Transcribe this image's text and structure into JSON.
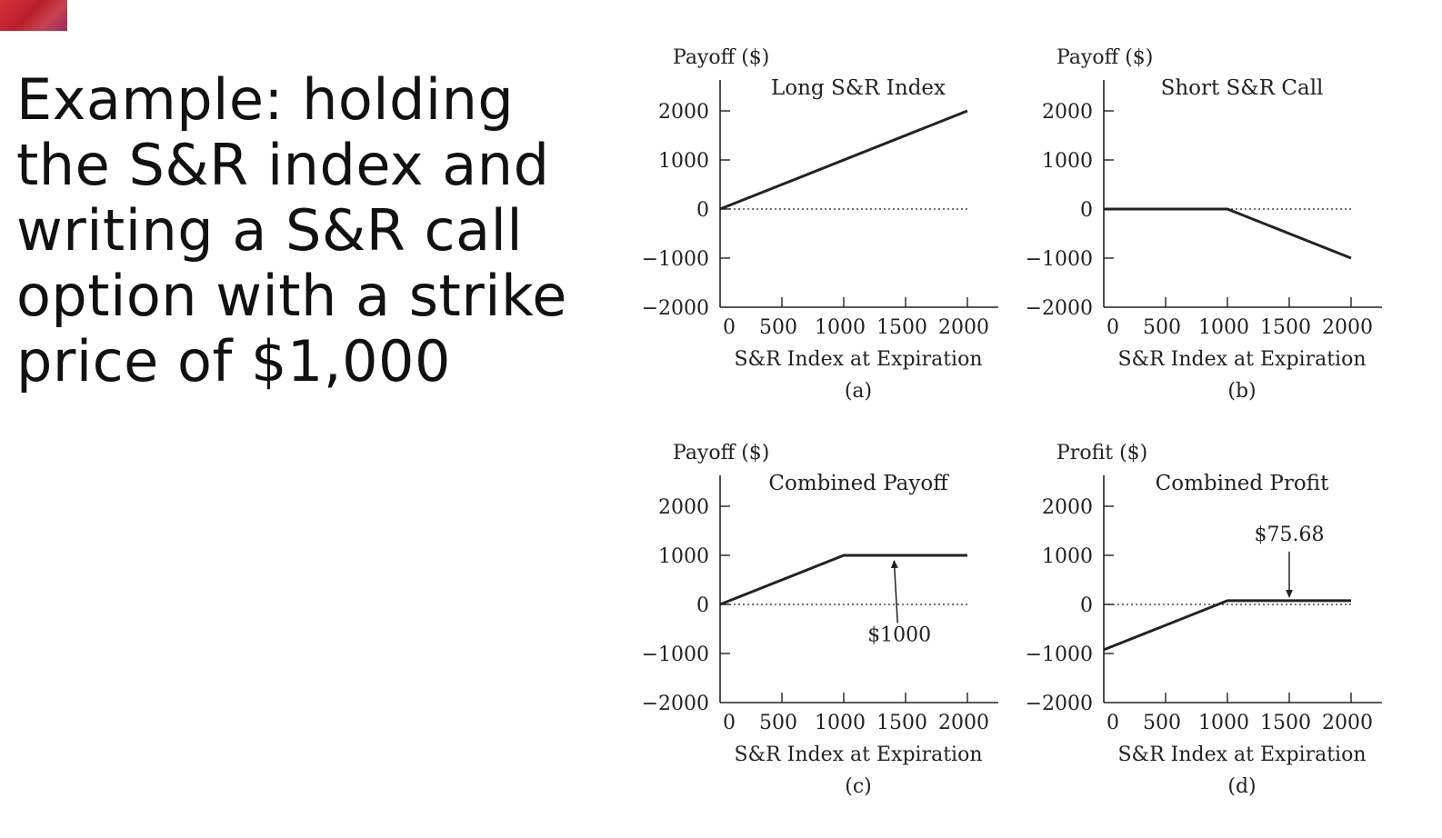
{
  "slide": {
    "title": "Example: holding the S&R index and writing a S&R call option with a strike price of $1,000"
  },
  "colors": {
    "ink": "#222222",
    "logo": "#c8323c"
  },
  "chart_data": [
    {
      "type": "line",
      "panel": "(a)",
      "title": "Long S&R Index",
      "ylabel": "Payoff ($)",
      "xlabel": "S&R Index at Expiration",
      "xlim": [
        0,
        2000
      ],
      "ylim": [
        -2000,
        2000
      ],
      "xticks": [
        0,
        500,
        1000,
        1500,
        2000
      ],
      "yticks": [
        2000,
        1000,
        0,
        -1000,
        -2000
      ],
      "ytick_labels": [
        "2000",
        "1000",
        "0",
        "−1000",
        "−2000"
      ],
      "zero_line": "dotted",
      "x": [
        0,
        2000
      ],
      "y": [
        0,
        2000
      ],
      "annotations": []
    },
    {
      "type": "line",
      "panel": "(b)",
      "title": "Short S&R Call",
      "ylabel": "Payoff ($)",
      "xlabel": "S&R Index at Expiration",
      "xlim": [
        0,
        2000
      ],
      "ylim": [
        -2000,
        2000
      ],
      "xticks": [
        0,
        500,
        1000,
        1500,
        2000
      ],
      "yticks": [
        2000,
        1000,
        0,
        -1000,
        -2000
      ],
      "ytick_labels": [
        "2000",
        "1000",
        "0",
        "−1000",
        "−2000"
      ],
      "zero_line": "dotted",
      "x": [
        0,
        1000,
        2000
      ],
      "y": [
        0,
        0,
        -1000
      ],
      "annotations": []
    },
    {
      "type": "line",
      "panel": "(c)",
      "title": "Combined Payoff",
      "ylabel": "Payoff ($)",
      "xlabel": "S&R Index at Expiration",
      "xlim": [
        0,
        2000
      ],
      "ylim": [
        -2000,
        2000
      ],
      "xticks": [
        0,
        500,
        1000,
        1500,
        2000
      ],
      "yticks": [
        2000,
        1000,
        0,
        -1000,
        -2000
      ],
      "ytick_labels": [
        "2000",
        "1000",
        "0",
        "−1000",
        "−2000"
      ],
      "zero_line": "dotted",
      "x": [
        0,
        1000,
        2000
      ],
      "y": [
        0,
        1000,
        1000
      ],
      "annotations": [
        {
          "text": "$1000",
          "point": [
            1400,
            1000
          ],
          "label_at": [
            1450,
            -750
          ],
          "label_below_arrow": true
        }
      ]
    },
    {
      "type": "line",
      "panel": "(d)",
      "title": "Combined Profit",
      "ylabel": "Profit ($)",
      "xlabel": "S&R Index at Expiration",
      "xlim": [
        0,
        2000
      ],
      "ylim": [
        -2000,
        2000
      ],
      "xticks": [
        0,
        500,
        1000,
        1500,
        2000
      ],
      "yticks": [
        2000,
        1000,
        0,
        -1000,
        -2000
      ],
      "ytick_labels": [
        "2000",
        "1000",
        "0",
        "−1000",
        "−2000"
      ],
      "zero_line": "dotted",
      "x": [
        0,
        1000,
        2000
      ],
      "y": [
        -924.32,
        75.68,
        75.68
      ],
      "annotations": [
        {
          "text": "$75.68",
          "point": [
            1500,
            75.68
          ],
          "label_at": [
            1500,
            1300
          ],
          "label_below_arrow": false
        }
      ]
    }
  ]
}
